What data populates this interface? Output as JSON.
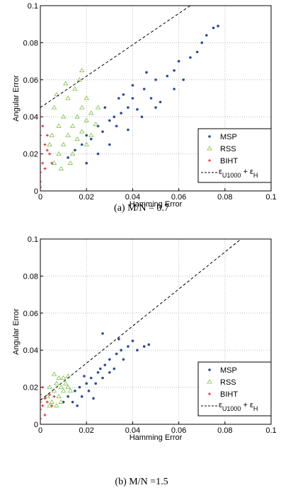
{
  "chart_data": [
    {
      "type": "scatter",
      "caption": "(a) M/N = 0.7",
      "xlabel": "Hamming Error",
      "ylabel": "Angular Error",
      "xlim": [
        0,
        0.1
      ],
      "ylim": [
        0,
        0.1
      ],
      "xticks": [
        0,
        0.02,
        0.04,
        0.06,
        0.08,
        0.1
      ],
      "yticks": [
        0,
        0.02,
        0.04,
        0.06,
        0.08,
        0.1
      ],
      "grid": true,
      "legend": "lower right",
      "series": [
        {
          "name": "MSP",
          "color": "#2a4c9f",
          "marker": "dot",
          "x": [
            0.012,
            0.015,
            0.018,
            0.02,
            0.022,
            0.025,
            0.027,
            0.03,
            0.032,
            0.035,
            0.033,
            0.038,
            0.04,
            0.042,
            0.045,
            0.048,
            0.05,
            0.052,
            0.055,
            0.058,
            0.06,
            0.062,
            0.065,
            0.068,
            0.07,
            0.072,
            0.075,
            0.077,
            0.028,
            0.036,
            0.044,
            0.025,
            0.02,
            0.03,
            0.038,
            0.05,
            0.058,
            0.046,
            0.04,
            0.034
          ],
          "values": [
            0.018,
            0.022,
            0.025,
            0.03,
            0.028,
            0.035,
            0.032,
            0.038,
            0.04,
            0.042,
            0.035,
            0.045,
            0.05,
            0.044,
            0.055,
            0.05,
            0.06,
            0.048,
            0.062,
            0.065,
            0.07,
            0.06,
            0.072,
            0.075,
            0.08,
            0.084,
            0.088,
            0.089,
            0.045,
            0.052,
            0.04,
            0.02,
            0.015,
            0.025,
            0.033,
            0.045,
            0.055,
            0.064,
            0.057,
            0.05
          ]
        },
        {
          "name": "RSS",
          "color": "#7cc242",
          "marker": "triangle",
          "x": [
            0.005,
            0.006,
            0.008,
            0.008,
            0.01,
            0.01,
            0.012,
            0.012,
            0.014,
            0.014,
            0.015,
            0.016,
            0.016,
            0.018,
            0.018,
            0.018,
            0.02,
            0.02,
            0.022,
            0.022,
            0.024,
            0.025,
            0.006,
            0.009,
            0.013,
            0.004,
            0.011,
            0.017,
            0.02,
            0.007
          ],
          "values": [
            0.03,
            0.045,
            0.035,
            0.02,
            0.04,
            0.025,
            0.05,
            0.03,
            0.035,
            0.02,
            0.055,
            0.04,
            0.028,
            0.065,
            0.045,
            0.032,
            0.038,
            0.025,
            0.042,
            0.03,
            0.036,
            0.045,
            0.015,
            0.012,
            0.015,
            0.025,
            0.058,
            0.06,
            0.05,
            0.052
          ]
        },
        {
          "name": "BIHT",
          "color": "#e3151c",
          "marker": "plus",
          "x": [
            0,
            0,
            0,
            0,
            0,
            0.001,
            0.002,
            0.003,
            0.004,
            0.005,
            0.003,
            0.001,
            0,
            0.002
          ],
          "values": [
            0.005,
            0.01,
            0.02,
            0.03,
            0.04,
            0.015,
            0.025,
            0.022,
            0.02,
            0.015,
            0.03,
            0.035,
            0.002,
            0.012
          ]
        }
      ],
      "bound": {
        "name_parts": [
          {
            "text": "ε"
          },
          {
            "text": "U1000",
            "sub": true
          },
          {
            "text": " + ε"
          },
          {
            "text": "H",
            "sub": true
          }
        ],
        "color": "#000000",
        "x": [
          0,
          0.065
        ],
        "values": [
          0.045,
          0.1
        ]
      }
    },
    {
      "type": "scatter",
      "caption": "(b) M/N =1.5",
      "xlabel": "Hamming Error",
      "ylabel": "Angular Error",
      "xlim": [
        0,
        0.1
      ],
      "ylim": [
        0,
        0.1
      ],
      "xticks": [
        0,
        0.02,
        0.04,
        0.06,
        0.08,
        0.1
      ],
      "yticks": [
        0,
        0.02,
        0.04,
        0.06,
        0.08,
        0.1
      ],
      "grid": true,
      "legend": "lower right",
      "series": [
        {
          "name": "MSP",
          "color": "#2a4c9f",
          "marker": "dot",
          "x": [
            0.01,
            0.012,
            0.014,
            0.015,
            0.017,
            0.018,
            0.02,
            0.021,
            0.022,
            0.024,
            0.025,
            0.026,
            0.027,
            0.028,
            0.03,
            0.03,
            0.032,
            0.033,
            0.035,
            0.036,
            0.038,
            0.04,
            0.042,
            0.045,
            0.047,
            0.027,
            0.034,
            0.019,
            0.016,
            0.023
          ],
          "values": [
            0.012,
            0.015,
            0.012,
            0.018,
            0.02,
            0.015,
            0.022,
            0.018,
            0.025,
            0.022,
            0.028,
            0.03,
            0.025,
            0.032,
            0.035,
            0.028,
            0.03,
            0.038,
            0.04,
            0.035,
            0.042,
            0.045,
            0.04,
            0.042,
            0.043,
            0.049,
            0.046,
            0.026,
            0.01,
            0.014
          ]
        },
        {
          "name": "RSS",
          "color": "#7cc242",
          "marker": "triangle",
          "x": [
            0.003,
            0.004,
            0.005,
            0.006,
            0.007,
            0.008,
            0.008,
            0.009,
            0.01,
            0.011,
            0.012,
            0.012,
            0.013,
            0.006,
            0.004,
            0.009,
            0.01,
            0.007
          ],
          "values": [
            0.015,
            0.02,
            0.012,
            0.018,
            0.022,
            0.015,
            0.025,
            0.02,
            0.018,
            0.022,
            0.02,
            0.026,
            0.018,
            0.027,
            0.01,
            0.012,
            0.025,
            0.01
          ]
        },
        {
          "name": "BIHT",
          "color": "#e3151c",
          "marker": "plus",
          "x": [
            0,
            0,
            0,
            0,
            0.001,
            0.002,
            0.003,
            0.005,
            0.004,
            0.006,
            0.002,
            0.001
          ],
          "values": [
            0.003,
            0.008,
            0.012,
            0.016,
            0.01,
            0.014,
            0.012,
            0.01,
            0.016,
            0.015,
            0.005,
            0.02
          ]
        }
      ],
      "bound": {
        "name_parts": [
          {
            "text": "ε"
          },
          {
            "text": "U1000",
            "sub": true
          },
          {
            "text": " + ε"
          },
          {
            "text": "H",
            "sub": true
          }
        ],
        "color": "#000000",
        "x": [
          0,
          0.087
        ],
        "values": [
          0.013,
          0.1
        ]
      }
    }
  ]
}
